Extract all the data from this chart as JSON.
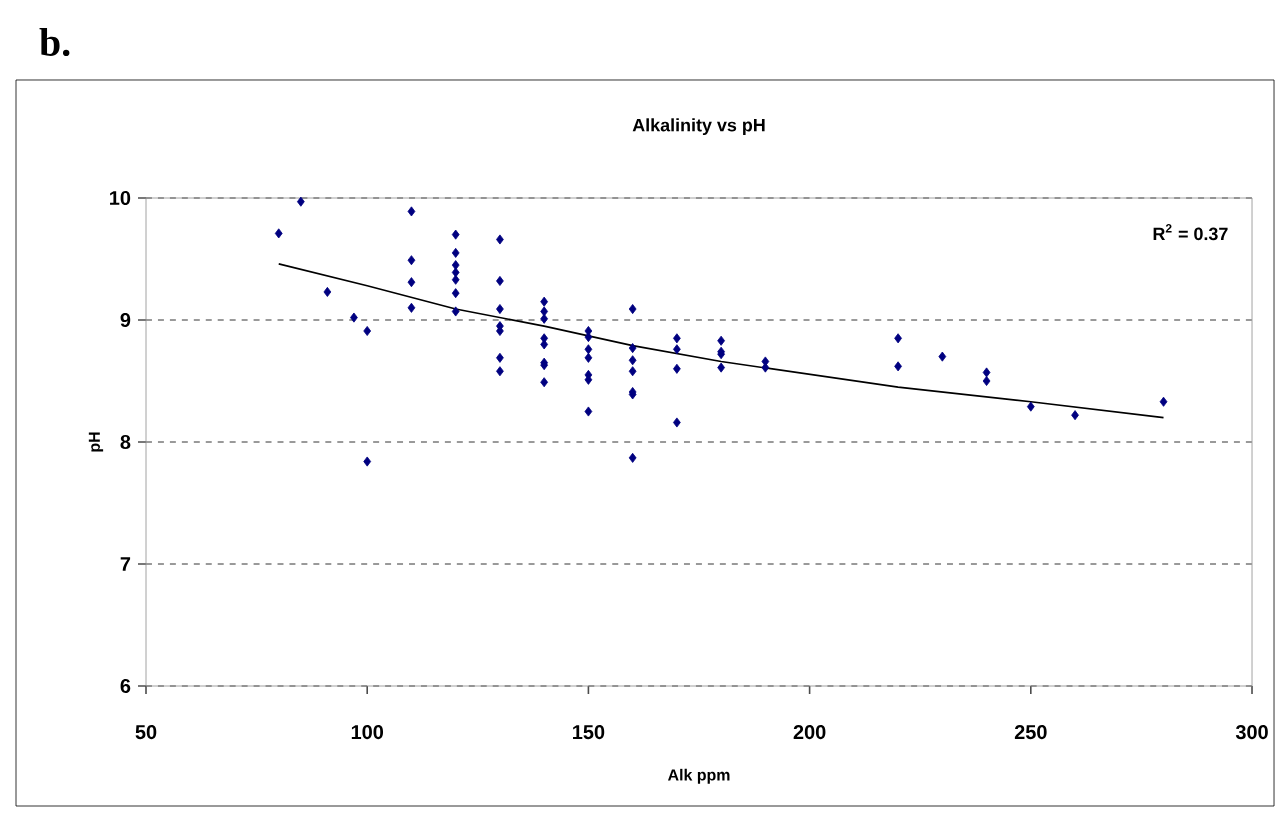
{
  "chart_data": {
    "type": "scatter",
    "title": "Alkalinity vs pH",
    "xlabel": "Alk ppm",
    "ylabel": "pH",
    "annotations": [
      "b.",
      "R$^{2}$ = 0.37"
    ],
    "xlim": [
      50,
      300
    ],
    "xticks": [
      50,
      100,
      150,
      200,
      250,
      300
    ],
    "ylim": [
      6,
      10
    ],
    "yticks": [
      6,
      7,
      8,
      9,
      10
    ],
    "grid": "y",
    "marker": "diamond",
    "series": [
      {
        "color": "#000080",
        "x": [
          80,
          85,
          91,
          97,
          100,
          100,
          110,
          110,
          110,
          110,
          120,
          120,
          120,
          120,
          120,
          120,
          120,
          130,
          130,
          130,
          130,
          130,
          130,
          130,
          140,
          140,
          140,
          140,
          140,
          140,
          140,
          140,
          150,
          150,
          150,
          150,
          150,
          150,
          150,
          160,
          160,
          160,
          160,
          160,
          160,
          160,
          170,
          170,
          170,
          170,
          180,
          180,
          180,
          180,
          190,
          190,
          220,
          220,
          230,
          240,
          240,
          250,
          260,
          280
        ],
        "values": [
          9.71,
          9.97,
          9.23,
          9.02,
          8.91,
          7.84,
          9.89,
          9.49,
          9.31,
          9.1,
          9.7,
          9.55,
          9.45,
          9.39,
          9.33,
          9.22,
          9.07,
          9.66,
          9.32,
          9.09,
          8.95,
          8.91,
          8.69,
          8.58,
          9.15,
          9.07,
          9.01,
          8.85,
          8.8,
          8.65,
          8.63,
          8.49,
          8.91,
          8.86,
          8.76,
          8.69,
          8.55,
          8.51,
          8.25,
          9.09,
          8.77,
          8.67,
          8.58,
          8.41,
          8.39,
          7.87,
          8.85,
          8.76,
          8.6,
          8.16,
          8.83,
          8.74,
          8.72,
          8.61,
          8.66,
          8.61,
          8.85,
          8.62,
          8.7,
          8.57,
          8.5,
          8.29,
          8.22,
          8.33
        ]
      },
      {
        "type": "line",
        "color": "#000000",
        "marker": "none",
        "x": [
          80,
          100,
          120,
          140,
          160,
          180,
          220,
          250,
          280
        ],
        "values": [
          9.46,
          9.28,
          9.09,
          8.95,
          8.79,
          8.66,
          8.45,
          8.33,
          8.2
        ]
      }
    ]
  }
}
